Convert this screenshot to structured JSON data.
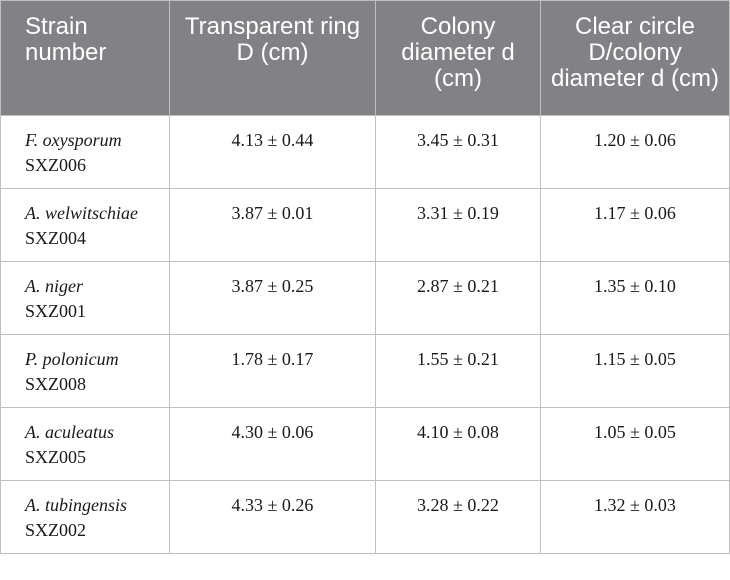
{
  "table": {
    "headers": [
      "Strain number",
      "Transparent ring D (cm)",
      "Colony diameter d (cm)",
      "Clear circle D/colony diameter d (cm)"
    ],
    "rows": [
      {
        "species": "F. oxysporum",
        "code": "SXZ006",
        "ring": "4.13 ± 0.44",
        "colony": "3.45 ± 0.31",
        "ratio": "1.20 ± 0.06"
      },
      {
        "species": "A. welwitschiae",
        "code": "SXZ004",
        "ring": "3.87 ± 0.01",
        "colony": "3.31 ± 0.19",
        "ratio": "1.17 ± 0.06"
      },
      {
        "species": "A. niger",
        "code": "SXZ001",
        "ring": "3.87 ± 0.25",
        "colony": "2.87 ± 0.21",
        "ratio": "1.35 ± 0.10"
      },
      {
        "species": "P. polonicum",
        "code": "SXZ008",
        "ring": "1.78 ± 0.17",
        "colony": "1.55 ± 0.21",
        "ratio": "1.15 ± 0.05"
      },
      {
        "species": "A. aculeatus",
        "code": "SXZ005",
        "ring": "4.30 ± 0.06",
        "colony": "4.10 ± 0.08",
        "ratio": "1.05 ± 0.05"
      },
      {
        "species": "A. tubingensis",
        "code": "SXZ002",
        "ring": "4.33 ± 0.26",
        "colony": "3.28 ± 0.22",
        "ratio": "1.32 ± 0.03"
      }
    ]
  }
}
